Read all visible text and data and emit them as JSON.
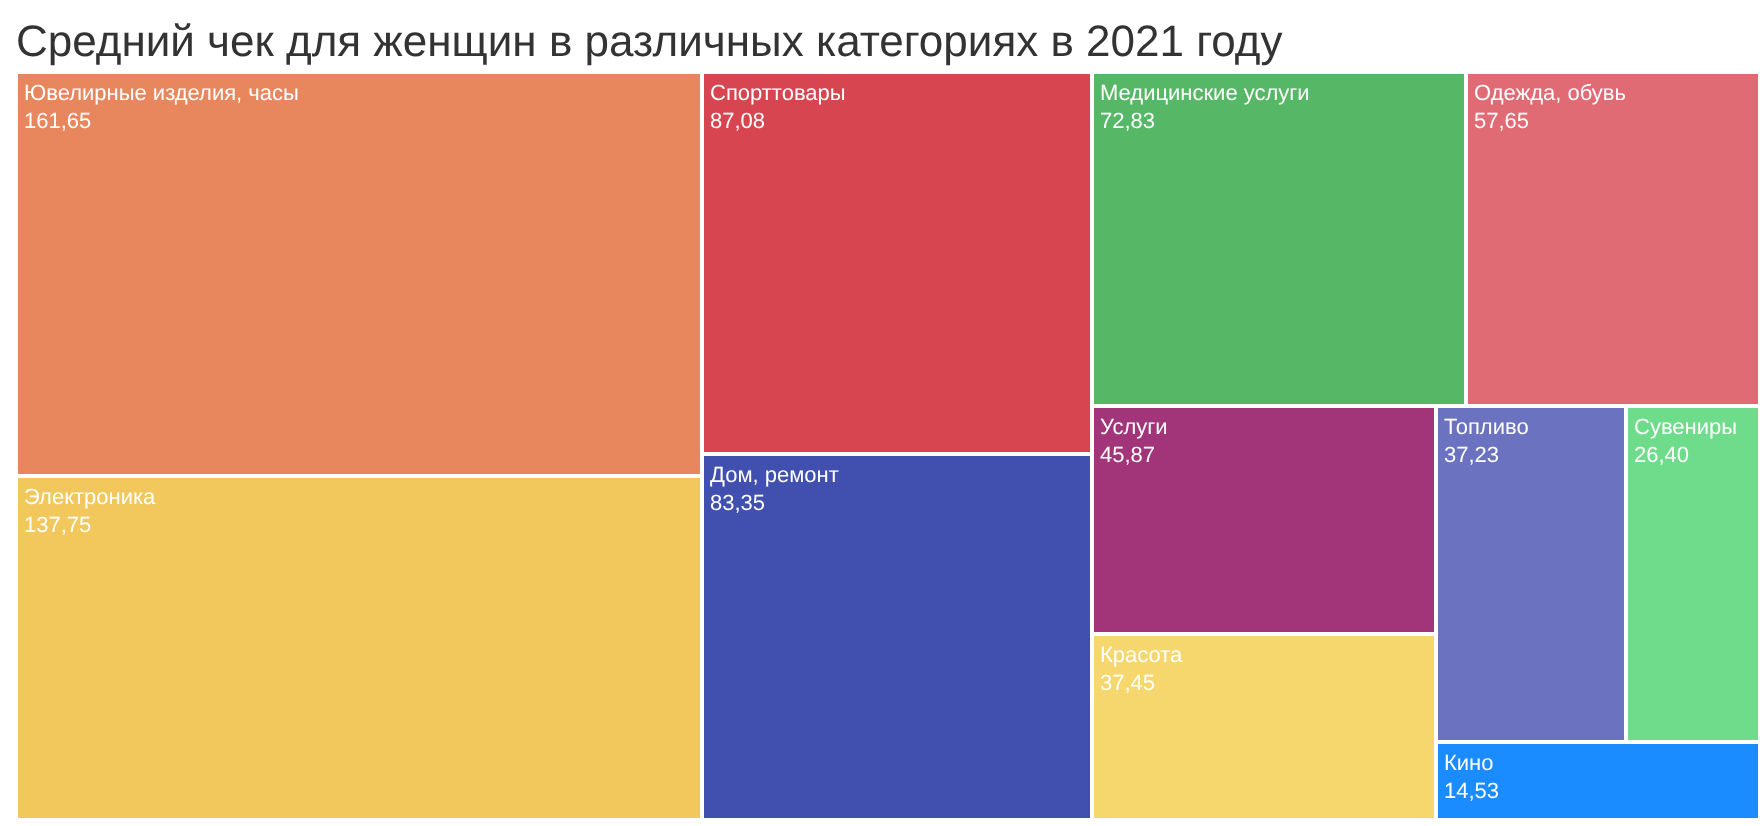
{
  "chart_data": {
    "type": "other",
    "title": "Средний чек для женщин в различных категориях в 2021 году",
    "categories": [
      "Ювелирные изделия, часы",
      "Электроника",
      "Спорттовары",
      "Дом, ремонт",
      "Медицинские услуги",
      "Одежда, обувь",
      "Услуги",
      "Красота",
      "Топливо",
      "Сувениры",
      "Кино"
    ],
    "values": [
      161.65,
      137.75,
      87.08,
      83.35,
      72.83,
      57.65,
      45.87,
      37.45,
      37.23,
      26.4,
      14.53
    ],
    "value_labels": [
      "161,65",
      "137,75",
      "87,08",
      "83,35",
      "72,83",
      "57,65",
      "45,87",
      "37,45",
      "37,23",
      "26,40",
      "14,53"
    ],
    "colors": [
      "#e8875e",
      "#f2c75c",
      "#d64550",
      "#4150ae",
      "#56b866",
      "#e06b75",
      "#a23579",
      "#f5d76e",
      "#6b73c1",
      "#6fdc8c",
      "#1a8cff"
    ]
  }
}
